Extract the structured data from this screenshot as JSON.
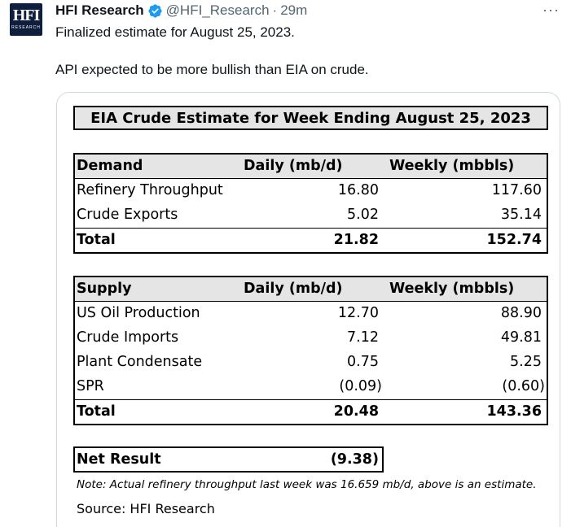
{
  "tweet": {
    "author_name": "HFI Research",
    "handle": "@HFI_Research",
    "separator": "·",
    "time": "29m",
    "more": "···",
    "avatar_text": "HFI",
    "avatar_subtext": "RESEARCH",
    "text_line1": "Finalized estimate for August 25, 2023.",
    "text_line2": "API expected to be more bullish than EIA on crude.",
    "colors": {
      "verified_badge": "#1d9bf0",
      "secondary_text": "#536471",
      "avatar_bg": "#0e1e3c"
    }
  },
  "table": {
    "title": "EIA Crude Estimate for Week Ending August 25, 2023",
    "demand": {
      "header": {
        "label": "Demand",
        "daily": "Daily (mb/d)",
        "weekly": "Weekly (mbbls)"
      },
      "rows": [
        {
          "label": "Refinery Throughput",
          "daily": "16.80",
          "weekly": "117.60"
        },
        {
          "label": "Crude Exports",
          "daily": "5.02",
          "weekly": "35.14"
        }
      ],
      "total": {
        "label": "Total",
        "daily": "21.82",
        "weekly": "152.74"
      }
    },
    "supply": {
      "header": {
        "label": "Supply",
        "daily": "Daily (mb/d)",
        "weekly": "Weekly (mbbls)"
      },
      "rows": [
        {
          "label": "US Oil Production",
          "daily": "12.70",
          "weekly": "88.90"
        },
        {
          "label": "Crude Imports",
          "daily": "7.12",
          "weekly": "49.81"
        },
        {
          "label": "Plant Condensate",
          "daily": "0.75",
          "weekly": "5.25"
        },
        {
          "label": "SPR",
          "daily": "(0.09)",
          "weekly": "(0.60)"
        }
      ],
      "total": {
        "label": "Total",
        "daily": "20.48",
        "weekly": "143.36"
      }
    },
    "net_result": {
      "label": "Net Result",
      "value": "(9.38)"
    },
    "note": "Note: Actual refinery throughput last week was 16.659 mb/d, above is an estimate.",
    "source": "Source: HFI Research"
  }
}
